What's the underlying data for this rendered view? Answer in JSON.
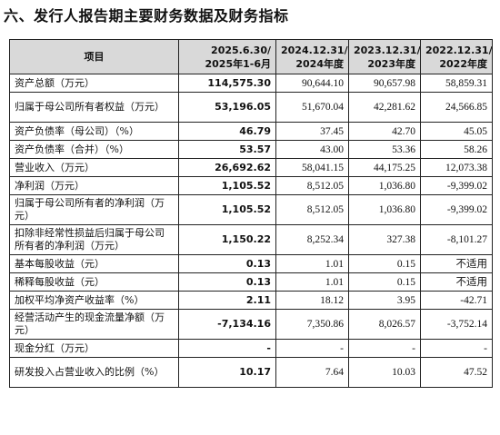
{
  "title": "六、发行人报告期主要财务数据及财务指标",
  "headers": {
    "item": "项目",
    "p0": [
      "2025.6.30/",
      "2025年1-6月"
    ],
    "p1": [
      "2024.12.31/",
      "2024年度"
    ],
    "p2": [
      "2023.12.31/",
      "2023年度"
    ],
    "p3": [
      "2022.12.31/",
      "2022年度"
    ]
  },
  "rows": [
    {
      "label": "资产总额（万元）",
      "v": [
        "114,575.30",
        "90,644.10",
        "90,657.98",
        "58,859.31"
      ]
    },
    {
      "label": "归属于母公司所有者权益（万元）",
      "v": [
        "53,196.05",
        "51,670.04",
        "42,281.62",
        "24,566.85"
      ]
    },
    {
      "label": "资产负债率（母公司）（%）",
      "v": [
        "46.79",
        "37.45",
        "42.70",
        "45.05"
      ]
    },
    {
      "label": "资产负债率（合并）（%）",
      "v": [
        "53.57",
        "43.00",
        "53.36",
        "58.26"
      ]
    },
    {
      "label": "营业收入（万元）",
      "v": [
        "26,692.62",
        "58,041.15",
        "44,175.25",
        "12,073.38"
      ]
    },
    {
      "label": "净利润（万元）",
      "v": [
        "1,105.52",
        "8,512.05",
        "1,036.80",
        "-9,399.02"
      ]
    },
    {
      "label": "归属于母公司所有者的净利润（万元）",
      "v": [
        "1,105.52",
        "8,512.05",
        "1,036.80",
        "-9,399.02"
      ]
    },
    {
      "label": "扣除非经常性损益后归属于母公司所有者的净利润（万元）",
      "v": [
        "1,150.22",
        "8,252.34",
        "327.38",
        "-8,101.27"
      ]
    },
    {
      "label": "基本每股收益（元）",
      "v": [
        "0.13",
        "1.01",
        "0.15",
        "不适用"
      ]
    },
    {
      "label": "稀释每股收益（元）",
      "v": [
        "0.13",
        "1.01",
        "0.15",
        "不适用"
      ]
    },
    {
      "label": "加权平均净资产收益率（%）",
      "v": [
        "2.11",
        "18.12",
        "3.95",
        "-42.71"
      ]
    },
    {
      "label": "经营活动产生的现金流量净额（万元）",
      "v": [
        "-7,134.16",
        "7,350.86",
        "8,026.57",
        "-3,752.14"
      ]
    },
    {
      "label": "现金分红（万元）",
      "v": [
        "-",
        "-",
        "-",
        "-"
      ]
    },
    {
      "label": "研发投入占营业收入的比例（%）",
      "v": [
        "10.17",
        "7.64",
        "10.03",
        "47.52"
      ]
    }
  ]
}
